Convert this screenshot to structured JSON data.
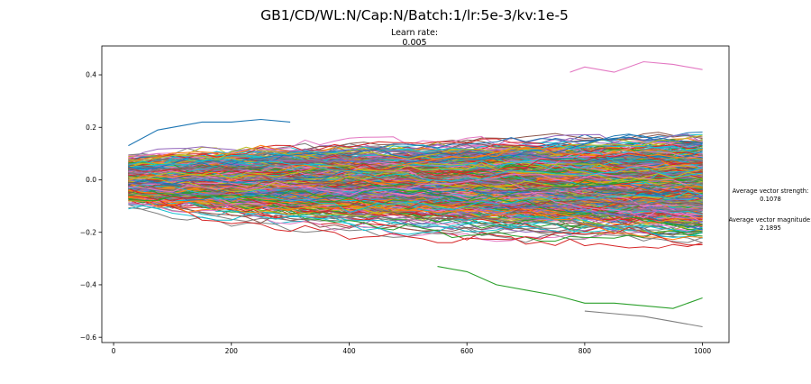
{
  "chart_data": {
    "type": "line",
    "title": "GB1/CD/WL:N/Cap:N/Batch:1/lr:5e-3/kv:1e-5",
    "subtitle_label": "Learn rate:",
    "subtitle_value": "0.005",
    "xlabel": "",
    "ylabel": "",
    "xlim": [
      -20,
      1045
    ],
    "ylim": [
      -0.62,
      0.51
    ],
    "xticks": [
      0,
      200,
      400,
      600,
      800,
      1000
    ],
    "yticks": [
      0.4,
      0.2,
      0.0,
      -0.2,
      -0.4,
      -0.6
    ],
    "xtick_labels": [
      "0",
      "200",
      "400",
      "600",
      "800",
      "1000"
    ],
    "ytick_labels": [
      "0.4",
      "0.2",
      "0.0",
      "−0.2",
      "−0.4",
      "−0.6"
    ],
    "grid": false,
    "legend": "none",
    "series_description": "approximately 1000 random-walk trajectories, x from 25 to 1000 in steps of 25, starting near 0 and spreading out to roughly ±0.45 at x=1000",
    "n_series": 1000,
    "x_start": 25,
    "x_end": 1000,
    "x_step": 25,
    "highlighted_series": [
      {
        "x": [
          25,
          75,
          150,
          200,
          250,
          300
        ],
        "y": [
          0.13,
          0.19,
          0.22,
          0.22,
          0.23,
          0.22
        ]
      },
      {
        "x": [
          550,
          600,
          650,
          700,
          750,
          800,
          850,
          900,
          950,
          975,
          1000
        ],
        "y": [
          -0.33,
          -0.35,
          -0.4,
          -0.42,
          -0.44,
          -0.47,
          -0.47,
          -0.48,
          -0.49,
          -0.47,
          -0.45
        ]
      },
      {
        "x": [
          800,
          850,
          900,
          950,
          1000
        ],
        "y": [
          -0.5,
          -0.51,
          -0.52,
          -0.54,
          -0.56
        ]
      },
      {
        "x": [
          775,
          800,
          850,
          900,
          950,
          1000
        ],
        "y": [
          0.41,
          0.43,
          0.41,
          0.45,
          0.44,
          0.42
        ]
      }
    ],
    "colors": [
      "#1f77b4",
      "#ff7f0e",
      "#2ca02c",
      "#d62728",
      "#9467bd",
      "#8c564b",
      "#e377c2",
      "#7f7f7f",
      "#bcbd22",
      "#17becf"
    ]
  },
  "annotations": {
    "strength_label": "Average vector strength:",
    "strength_value": "0.1078",
    "magnitude_label": "Average vector magnitude:",
    "magnitude_value": "2.1895"
  }
}
